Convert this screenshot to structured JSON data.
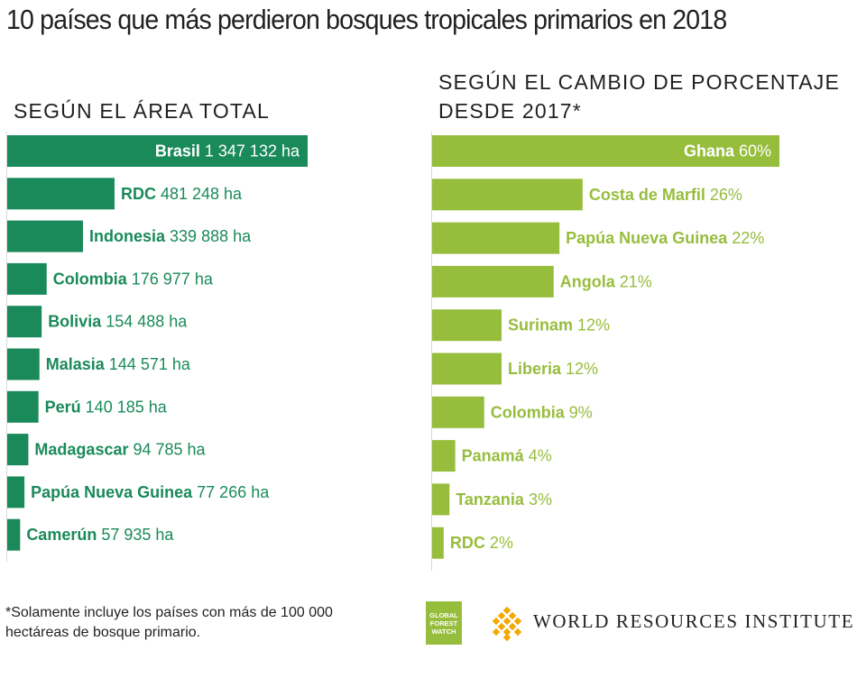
{
  "title": "10 países que más perdieron bosques tropicales primarios en 2018",
  "colors": {
    "left_bar": "#1a8a5a",
    "right_bar": "#97bd3d",
    "axis": "#d9d9d9"
  },
  "chart_data": [
    {
      "type": "bar",
      "orientation": "horizontal",
      "title": "SEGÚN EL ÁREA TOTAL",
      "unit": "ha",
      "categories": [
        "Brasil",
        "RDC",
        "Indonesia",
        "Colombia",
        "Bolivia",
        "Malasia",
        "Perú",
        "Madagascar",
        "Papúa Nueva Guinea",
        "Camerún"
      ],
      "values": [
        1347132,
        481248,
        339888,
        176977,
        154488,
        144571,
        140185,
        94785,
        77266,
        57935
      ],
      "value_labels": [
        "1 347 132 ha",
        "481 248 ha",
        "339 888 ha",
        "176 977 ha",
        "154 488 ha",
        "144 571 ha",
        "140 185 ha",
        "94 785 ha",
        "77 266 ha",
        "57 935 ha"
      ],
      "color": "#1a8a5a",
      "label_color": "#1a8a5a"
    },
    {
      "type": "bar",
      "orientation": "horizontal",
      "title": "SEGÚN EL CAMBIO DE PORCENTAJE DESDE 2017*",
      "unit": "%",
      "categories": [
        "Ghana",
        "Costa de Marfil",
        "Papúa Nueva Guinea",
        "Angola",
        "Surinam",
        "Liberia",
        "Colombia",
        "Panamá",
        "Tanzania",
        "RDC"
      ],
      "values": [
        60,
        26,
        22,
        21,
        12,
        12,
        9,
        4,
        3,
        2
      ],
      "value_labels": [
        "60%",
        "26%",
        "22%",
        "21%",
        "12%",
        "12%",
        "9%",
        "4%",
        "3%",
        "2%"
      ],
      "color": "#97bd3d",
      "label_color": "#97bd3d"
    }
  ],
  "footnote": "*Solamente incluye los países con más de 100 000 hectáreas de bosque primario.",
  "logos": {
    "gfw": [
      "GLOBAL",
      "FOREST",
      "WATCH"
    ],
    "wri": "WORLD RESOURCES INSTITUTE",
    "wri_icon": "wri-knot-icon"
  }
}
